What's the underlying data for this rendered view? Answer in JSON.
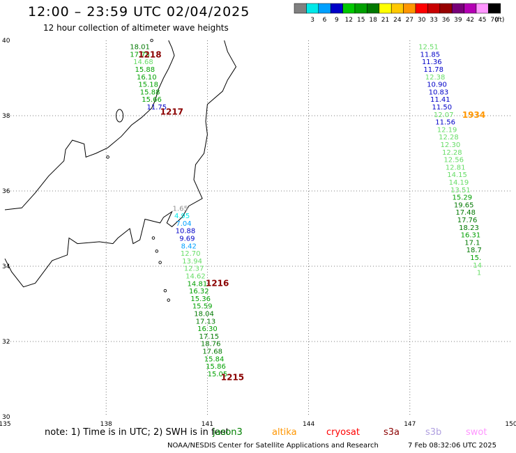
{
  "header": {
    "title": "12:00 – 23:59 UTC 02/04/2025",
    "subtitle": "12 hour collection of altimeter wave heights"
  },
  "legend": {
    "unit": "(ft)",
    "bins": [
      {
        "label": "",
        "color": "#808080"
      },
      {
        "label": "3",
        "color": "#00e8e8"
      },
      {
        "label": "6",
        "color": "#00a0ff"
      },
      {
        "label": "9",
        "color": "#0000c8"
      },
      {
        "label": "12",
        "color": "#00c800"
      },
      {
        "label": "15",
        "color": "#00a000"
      },
      {
        "label": "18",
        "color": "#007800"
      },
      {
        "label": "21",
        "color": "#ffff00"
      },
      {
        "label": "24",
        "color": "#ffc800"
      },
      {
        "label": "27",
        "color": "#ff9600"
      },
      {
        "label": "30",
        "color": "#ff0000"
      },
      {
        "label": "33",
        "color": "#c80000"
      },
      {
        "label": "36",
        "color": "#960000"
      },
      {
        "label": "39",
        "color": "#780078"
      },
      {
        "label": "42",
        "color": "#b400b4"
      },
      {
        "label": "45",
        "color": "#ff96ff"
      },
      {
        "label": "70",
        "color": "#000000"
      }
    ]
  },
  "map": {
    "lon_range": [
      135,
      150
    ],
    "lat_range": [
      30,
      40
    ],
    "lon_ticks": [
      "135",
      "138",
      "141",
      "144",
      "147",
      "150"
    ],
    "lat_ticks": [
      "40",
      "38",
      "36",
      "34",
      "32",
      "30"
    ],
    "grid": "dotted"
  },
  "passes": [
    {
      "id": "1218",
      "color": "#8b0000",
      "readings": [
        {
          "lon": 139.0,
          "lat": 39.84,
          "v": "18.01",
          "c": "#007800"
        },
        {
          "lon": 139.0,
          "lat": 39.64,
          "v": "17.75",
          "c": "#00a000"
        },
        {
          "lon": 139.1,
          "lat": 39.44,
          "v": "14.68",
          "c": "#66dd66"
        },
        {
          "lon": 139.15,
          "lat": 39.24,
          "v": "15.88",
          "c": "#00a000"
        },
        {
          "lon": 139.2,
          "lat": 39.04,
          "v": "16.10",
          "c": "#00a000"
        },
        {
          "lon": 139.25,
          "lat": 38.84,
          "v": "15.18",
          "c": "#00a000"
        },
        {
          "lon": 139.3,
          "lat": 38.64,
          "v": "15.88",
          "c": "#00a000"
        },
        {
          "lon": 139.35,
          "lat": 38.44,
          "v": "15.66",
          "c": "#00a000"
        },
        {
          "lon": 139.5,
          "lat": 38.24,
          "v": "11.75",
          "c": "#0000c8"
        }
      ]
    },
    {
      "id": "1217",
      "color": "#8b0000",
      "readings": []
    },
    {
      "id": "1216",
      "color": "#8b0000",
      "readings": [
        {
          "lon": 140.2,
          "lat": 35.55,
          "v": "1.65",
          "c": "#909090"
        },
        {
          "lon": 140.25,
          "lat": 35.35,
          "v": "4.95",
          "c": "#00e8e8"
        },
        {
          "lon": 140.3,
          "lat": 35.15,
          "v": "7.04",
          "c": "#00a0ff"
        },
        {
          "lon": 140.35,
          "lat": 34.95,
          "v": "10.88",
          "c": "#0000c8"
        },
        {
          "lon": 140.4,
          "lat": 34.75,
          "v": "9.69",
          "c": "#0000c8"
        },
        {
          "lon": 140.45,
          "lat": 34.55,
          "v": "8.42",
          "c": "#00a0ff"
        },
        {
          "lon": 140.5,
          "lat": 34.35,
          "v": "12.70",
          "c": "#66dd66"
        },
        {
          "lon": 140.55,
          "lat": 34.15,
          "v": "13.94",
          "c": "#66dd66"
        },
        {
          "lon": 140.6,
          "lat": 33.95,
          "v": "12.37",
          "c": "#66dd66"
        },
        {
          "lon": 140.65,
          "lat": 33.75,
          "v": "14.62",
          "c": "#66dd66"
        },
        {
          "lon": 140.7,
          "lat": 33.55,
          "v": "14.81",
          "c": "#00a000"
        },
        {
          "lon": 140.75,
          "lat": 33.35,
          "v": "16.32",
          "c": "#00a000"
        },
        {
          "lon": 140.8,
          "lat": 33.15,
          "v": "15.36",
          "c": "#00a000"
        },
        {
          "lon": 140.85,
          "lat": 32.95,
          "v": "15.59",
          "c": "#00a000"
        },
        {
          "lon": 140.9,
          "lat": 32.75,
          "v": "18.04",
          "c": "#007800"
        },
        {
          "lon": 140.95,
          "lat": 32.55,
          "v": "17.13",
          "c": "#007800"
        },
        {
          "lon": 141.0,
          "lat": 32.35,
          "v": "16.30",
          "c": "#00a000"
        },
        {
          "lon": 141.05,
          "lat": 32.15,
          "v": "17.15",
          "c": "#007800"
        },
        {
          "lon": 141.1,
          "lat": 31.95,
          "v": "18.76",
          "c": "#007800"
        },
        {
          "lon": 141.15,
          "lat": 31.75,
          "v": "17.68",
          "c": "#007800"
        },
        {
          "lon": 141.2,
          "lat": 31.55,
          "v": "15.84",
          "c": "#00a000"
        },
        {
          "lon": 141.25,
          "lat": 31.35,
          "v": "15.86",
          "c": "#00a000"
        },
        {
          "lon": 141.3,
          "lat": 31.15,
          "v": "15.05",
          "c": "#00a000"
        }
      ]
    },
    {
      "id": "1215",
      "color": "#8b0000",
      "readings": []
    },
    {
      "id": "1934",
      "color": "#ff9600",
      "readings": [
        {
          "lon": 147.55,
          "lat": 39.84,
          "v": "12.51",
          "c": "#66dd66"
        },
        {
          "lon": 147.6,
          "lat": 39.64,
          "v": "11.85",
          "c": "#0000c8"
        },
        {
          "lon": 147.65,
          "lat": 39.44,
          "v": "11.36",
          "c": "#0000c8"
        },
        {
          "lon": 147.7,
          "lat": 39.24,
          "v": "11.78",
          "c": "#0000c8"
        },
        {
          "lon": 147.75,
          "lat": 39.04,
          "v": "12.38",
          "c": "#66dd66"
        },
        {
          "lon": 147.8,
          "lat": 38.84,
          "v": "10.90",
          "c": "#0000c8"
        },
        {
          "lon": 147.85,
          "lat": 38.64,
          "v": "10.83",
          "c": "#0000c8"
        },
        {
          "lon": 147.9,
          "lat": 38.44,
          "v": "11.41",
          "c": "#0000c8"
        },
        {
          "lon": 147.95,
          "lat": 38.24,
          "v": "11.50",
          "c": "#0000c8"
        },
        {
          "lon": 148.0,
          "lat": 38.04,
          "v": "12.07",
          "c": "#66dd66"
        },
        {
          "lon": 148.05,
          "lat": 37.84,
          "v": "11.56",
          "c": "#0000c8"
        },
        {
          "lon": 148.1,
          "lat": 37.64,
          "v": "12.19",
          "c": "#66dd66"
        },
        {
          "lon": 148.15,
          "lat": 37.44,
          "v": "12.28",
          "c": "#66dd66"
        },
        {
          "lon": 148.2,
          "lat": 37.24,
          "v": "12.30",
          "c": "#66dd66"
        },
        {
          "lon": 148.25,
          "lat": 37.04,
          "v": "12.28",
          "c": "#66dd66"
        },
        {
          "lon": 148.3,
          "lat": 36.84,
          "v": "12.56",
          "c": "#66dd66"
        },
        {
          "lon": 148.35,
          "lat": 36.64,
          "v": "12.81",
          "c": "#66dd66"
        },
        {
          "lon": 148.4,
          "lat": 36.44,
          "v": "14.15",
          "c": "#66dd66"
        },
        {
          "lon": 148.45,
          "lat": 36.24,
          "v": "14.19",
          "c": "#66dd66"
        },
        {
          "lon": 148.5,
          "lat": 36.04,
          "v": "13.51",
          "c": "#66dd66"
        },
        {
          "lon": 148.55,
          "lat": 35.84,
          "v": "15.29",
          "c": "#00a000"
        },
        {
          "lon": 148.6,
          "lat": 35.64,
          "v": "19.65",
          "c": "#007800"
        },
        {
          "lon": 148.65,
          "lat": 35.44,
          "v": "17.48",
          "c": "#007800"
        },
        {
          "lon": 148.7,
          "lat": 35.24,
          "v": "17.76",
          "c": "#007800"
        },
        {
          "lon": 148.75,
          "lat": 35.04,
          "v": "18.23",
          "c": "#007800"
        },
        {
          "lon": 148.8,
          "lat": 34.84,
          "v": "16.31",
          "c": "#00a000"
        },
        {
          "lon": 148.85,
          "lat": 34.64,
          "v": "17.1",
          "c": "#007800"
        },
        {
          "lon": 148.9,
          "lat": 34.44,
          "v": "18.7",
          "c": "#007800"
        },
        {
          "lon": 148.95,
          "lat": 34.24,
          "v": "15.",
          "c": "#00a000"
        },
        {
          "lon": 149.0,
          "lat": 34.04,
          "v": "14",
          "c": "#66dd66"
        },
        {
          "lon": 149.05,
          "lat": 33.84,
          "v": "1",
          "c": "#66dd66"
        }
      ]
    }
  ],
  "pass_labels": [
    {
      "id": "1218",
      "lon": 138.95,
      "lat": 39.62
    },
    {
      "id": "1217",
      "lon": 139.6,
      "lat": 38.1
    },
    {
      "id": "1216",
      "lon": 140.95,
      "lat": 33.55
    },
    {
      "id": "1215",
      "lon": 141.4,
      "lat": 31.05
    },
    {
      "id": "1934",
      "lon": 148.55,
      "lat": 38.02
    }
  ],
  "note": "note:  1) Time is in UTC; 2) SWH is in feet",
  "missions": [
    {
      "label": "jason3",
      "color": "#008000"
    },
    {
      "label": "altika",
      "color": "#ff9600"
    },
    {
      "label": "cryosat",
      "color": "#ff0000"
    },
    {
      "label": "s3a",
      "color": "#8b0000"
    },
    {
      "label": "s3b",
      "color": "#b0a0e0"
    },
    {
      "label": "swot",
      "color": "#ff96ff"
    }
  ],
  "footer": {
    "credit": "NOAA/NESDIS Center for Satellite Applications and Research",
    "date": "7 Feb 08:32:06 UTC 2025"
  }
}
